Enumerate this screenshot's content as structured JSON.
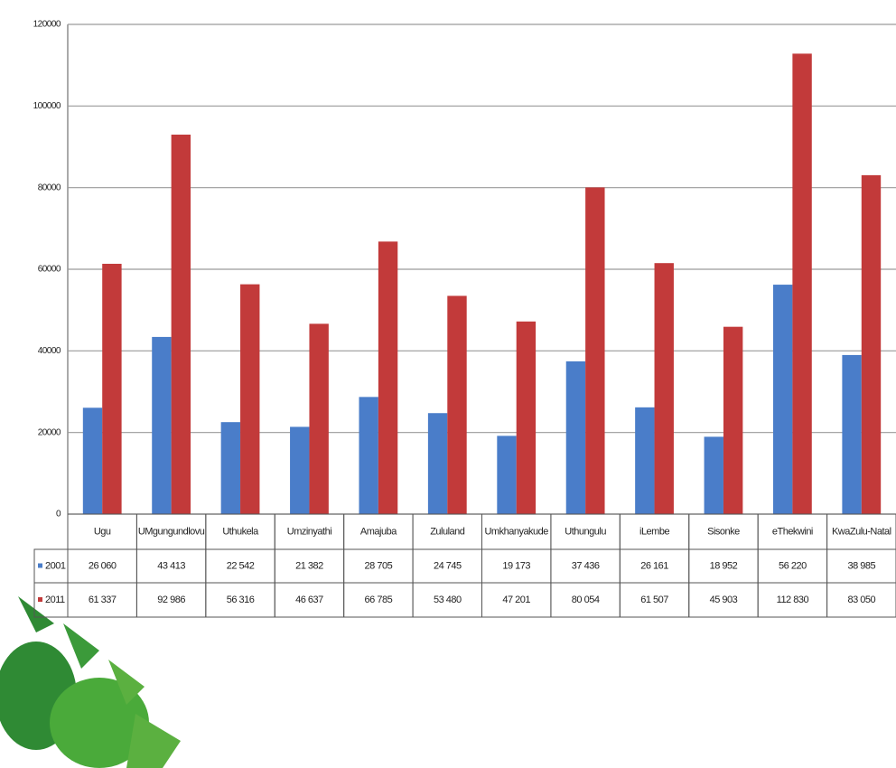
{
  "chart_data": {
    "type": "bar",
    "categories": [
      "Ugu",
      "UMgungundlovu",
      "Uthukela",
      "Umzinyathi",
      "Amajuba",
      "Zululand",
      "Umkhanyakude",
      "Uthungulu",
      "iLembe",
      "Sisonke",
      "eThekwini",
      "KwaZulu-Natal"
    ],
    "series": [
      {
        "name": "2001",
        "color": "#4a7dc9",
        "values": [
          26060,
          43413,
          22542,
          21382,
          28705,
          24745,
          19173,
          37436,
          26161,
          18952,
          56220,
          38985
        ],
        "value_labels": [
          "26 060",
          "43 413",
          "22 542",
          "21 382",
          "28 705",
          "24 745",
          "19 173",
          "37 436",
          "26 161",
          "18 952",
          "56 220",
          "38 985"
        ]
      },
      {
        "name": "2011",
        "color": "#c23a3a",
        "values": [
          61337,
          92986,
          56316,
          46637,
          66785,
          53480,
          47201,
          80054,
          61507,
          45903,
          112830,
          83050
        ],
        "value_labels": [
          "61 337",
          "92 986",
          "56 316",
          "46 637",
          "66 785",
          "53 480",
          "47 201",
          "80 054",
          "61 507",
          "45 903",
          "112 830",
          "83 050"
        ]
      }
    ],
    "ylim": [
      0,
      120000
    ],
    "yticks": [
      0,
      20000,
      40000,
      60000,
      80000,
      100000,
      120000
    ],
    "grid": true
  }
}
